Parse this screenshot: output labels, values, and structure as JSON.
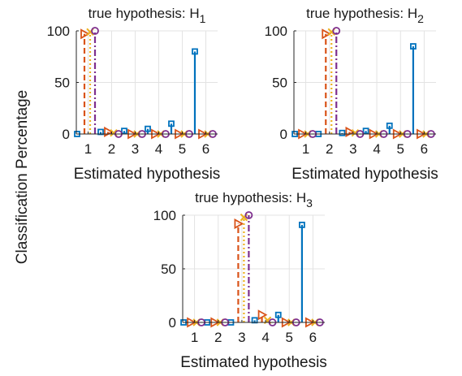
{
  "figure": {
    "ylabel": "Classification Percentage"
  },
  "chart_data": [
    {
      "type": "stem",
      "title": "true hypothesis: H",
      "title_subscript": "1",
      "xlabel": "Estimated hypothesis",
      "ylabel": "Classification Percentage",
      "x_ticks": [
        "1",
        "2",
        "3",
        "4",
        "5",
        "6"
      ],
      "y_ticks": [
        "0",
        "50",
        "100"
      ],
      "xlim": [
        0.5,
        6.5
      ],
      "ylim": [
        0,
        100
      ],
      "grid": true,
      "series": [
        {
          "color": "#0072BD",
          "line": "solid",
          "marker": "square",
          "values": [
            0,
            2,
            3,
            5,
            10,
            80
          ]
        },
        {
          "color": "#D95319",
          "line": "dashed",
          "marker": "triangle-right",
          "values": [
            97,
            2,
            0,
            0,
            0,
            0
          ]
        },
        {
          "color": "#EDB120",
          "line": "dotted",
          "marker": "x",
          "values": [
            99,
            1,
            0,
            0,
            0,
            0
          ]
        },
        {
          "color": "#7E2F8E",
          "line": "dashdot",
          "marker": "circle",
          "values": [
            100,
            0,
            0,
            0,
            0,
            0
          ]
        }
      ]
    },
    {
      "type": "stem",
      "title": "true hypothesis: H",
      "title_subscript": "2",
      "xlabel": "Estimated hypothesis",
      "ylabel": "Classification Percentage",
      "x_ticks": [
        "1",
        "2",
        "3",
        "4",
        "5",
        "6"
      ],
      "y_ticks": [
        "0",
        "50",
        "100"
      ],
      "xlim": [
        0.5,
        6.5
      ],
      "ylim": [
        0,
        100
      ],
      "grid": true,
      "series": [
        {
          "color": "#0072BD",
          "line": "solid",
          "marker": "square",
          "values": [
            0,
            0,
            1,
            3,
            8,
            85
          ]
        },
        {
          "color": "#D95319",
          "line": "dashed",
          "marker": "triangle-right",
          "values": [
            0,
            97,
            2,
            0,
            0,
            0
          ]
        },
        {
          "color": "#EDB120",
          "line": "dotted",
          "marker": "x",
          "values": [
            0,
            99,
            1,
            0,
            0,
            0
          ]
        },
        {
          "color": "#7E2F8E",
          "line": "dashdot",
          "marker": "circle",
          "values": [
            0,
            100,
            0,
            0,
            0,
            0
          ]
        }
      ]
    },
    {
      "type": "stem",
      "title": "true hypothesis: H",
      "title_subscript": "3",
      "xlabel": "Estimated hypothesis",
      "ylabel": "Classification Percentage",
      "x_ticks": [
        "1",
        "2",
        "3",
        "4",
        "5",
        "6"
      ],
      "y_ticks": [
        "0",
        "50",
        "100"
      ],
      "xlim": [
        0.5,
        6.5
      ],
      "ylim": [
        0,
        100
      ],
      "grid": true,
      "series": [
        {
          "color": "#0072BD",
          "line": "solid",
          "marker": "square",
          "values": [
            0,
            0,
            0,
            2,
            7,
            91
          ]
        },
        {
          "color": "#D95319",
          "line": "dashed",
          "marker": "triangle-right",
          "values": [
            0,
            0,
            92,
            7,
            0,
            0
          ]
        },
        {
          "color": "#EDB120",
          "line": "dotted",
          "marker": "x",
          "values": [
            0,
            0,
            98,
            2,
            0,
            0
          ]
        },
        {
          "color": "#7E2F8E",
          "line": "dashdot",
          "marker": "circle",
          "values": [
            0,
            0,
            100,
            0,
            0,
            0
          ]
        }
      ]
    }
  ]
}
